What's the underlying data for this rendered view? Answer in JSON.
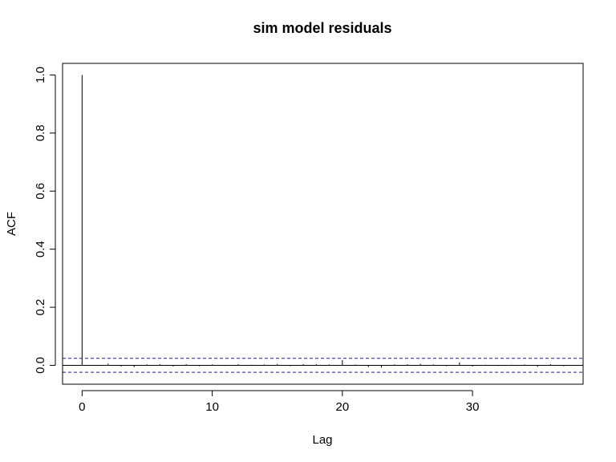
{
  "chart_data": {
    "type": "bar",
    "title": "sim model residuals",
    "xlabel": "Lag",
    "ylabel": "ACF",
    "xlim": [
      -1.5,
      38.5
    ],
    "ylim": [
      -0.065,
      1.04
    ],
    "x_ticks": [
      0,
      10,
      20,
      30
    ],
    "y_ticks": [
      0.0,
      0.2,
      0.4,
      0.6,
      0.8,
      1.0
    ],
    "y_tick_labels": [
      "0.0",
      "0.2",
      "0.4",
      "0.6",
      "0.8",
      "1.0"
    ],
    "x": [
      0,
      1,
      2,
      3,
      4,
      5,
      6,
      7,
      8,
      9,
      10,
      11,
      12,
      13,
      14,
      15,
      16,
      17,
      18,
      19,
      20,
      21,
      22,
      23,
      24,
      25,
      26,
      27,
      28,
      29,
      30,
      31,
      32,
      33,
      34,
      35,
      36,
      37
    ],
    "values": [
      1.0,
      0.001,
      0.006,
      -0.004,
      -0.006,
      0.003,
      0.004,
      -0.004,
      0.004,
      -0.003,
      0.003,
      -0.002,
      0.004,
      0.002,
      0.003,
      0.005,
      -0.003,
      0.004,
      0.004,
      0.003,
      0.018,
      0.003,
      -0.006,
      -0.008,
      0.003,
      0.004,
      0.005,
      0.003,
      -0.003,
      0.01,
      -0.004,
      0.002,
      -0.002,
      0.002,
      0.003,
      -0.005,
      0.004,
      -0.003
    ],
    "confidence_band": 0.024,
    "zero_line": 0,
    "grid": false,
    "colors": {
      "bars": "#000000",
      "confidence": "#1c1c8c",
      "axes": "#000000"
    }
  }
}
